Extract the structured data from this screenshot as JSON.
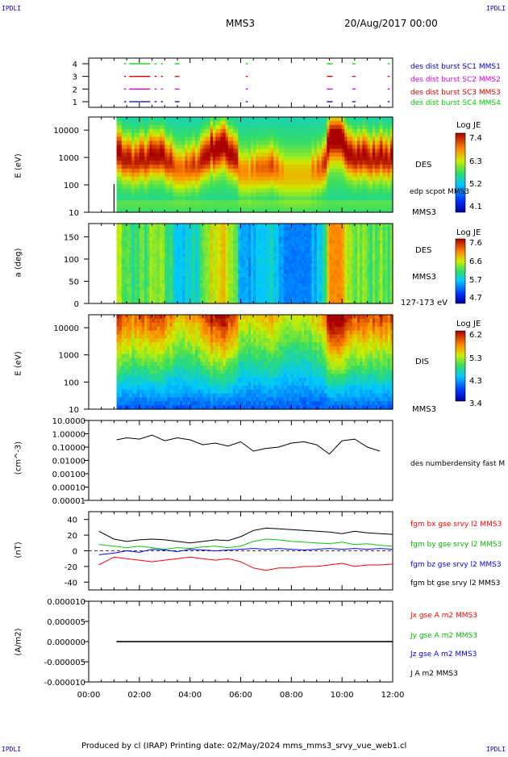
{
  "corners": {
    "top_left": "IPDLI",
    "top_right": "IPDLI",
    "bottom_left": "IPDLI",
    "bottom_right": "IPDLI"
  },
  "header": {
    "spacecraft": "MMS3",
    "datetime": "20/Aug/2017 00:00"
  },
  "footer": {
    "text": "Produced by cl (IRAP)   Printing date: 02/May/2024   mms_mms3_srvy_vue_web1.cl"
  },
  "x_axis": {
    "ticks": [
      "00:00",
      "02:00",
      "04:00",
      "06:00",
      "08:00",
      "10:00",
      "12:00"
    ],
    "range_hours": [
      0,
      12
    ]
  },
  "colors": {
    "burst1": "#0000cc",
    "burst2": "#dd00dd",
    "burst3": "#dd0000",
    "burst4": "#00cc00",
    "bx": "#ff0000",
    "by": "#00cc00",
    "bz": "#0000ff",
    "bt": "#000000"
  },
  "chart_data": [
    {
      "type": "scatter",
      "panel": "burst",
      "yticks": [
        "1",
        "2",
        "3",
        "4"
      ],
      "series": [
        {
          "name": "des dist burst SC1 MMS1",
          "y": 1
        },
        {
          "name": "des dist burst SC2 MMS2",
          "y": 2
        },
        {
          "name": "des dist burst SC3 MMS3",
          "y": 3
        },
        {
          "name": "des dist burst SC4 MMS4",
          "y": 4
        }
      ],
      "intervals_hours": [
        [
          1.4,
          1.45
        ],
        [
          1.6,
          2.4
        ],
        [
          2.6,
          2.65
        ],
        [
          2.85,
          2.9
        ],
        [
          3.4,
          3.55
        ],
        [
          6.2,
          6.25
        ],
        [
          9.4,
          9.6
        ],
        [
          10.4,
          10.5
        ],
        [
          11.8,
          11.85
        ]
      ]
    },
    {
      "type": "heatmap",
      "panel": "des_energy",
      "ylabel": "E (eV)",
      "yscale": "log",
      "ytick_labels": [
        "10",
        "100",
        "1000",
        "10000"
      ],
      "ylim": [
        10,
        30000
      ],
      "colorbar": {
        "title": "Log JE",
        "ticks": [
          "7.4",
          "6.3",
          "5.2",
          "4.1"
        ]
      },
      "labels": [
        "DES",
        "edp scpot MMS3",
        "MMS3"
      ]
    },
    {
      "type": "heatmap",
      "panel": "des_pitch",
      "ylabel": "a (deg)",
      "ytick_labels": [
        "0",
        "50",
        "100",
        "150"
      ],
      "ylim": [
        0,
        180
      ],
      "colorbar": {
        "title": "Log JE",
        "ticks": [
          "7.6",
          "6.6",
          "5.7",
          "4.7"
        ]
      },
      "labels": [
        "DES",
        "MMS3",
        "127-173 eV"
      ]
    },
    {
      "type": "heatmap",
      "panel": "dis_energy",
      "ylabel": "E (eV)",
      "yscale": "log",
      "ytick_labels": [
        "10",
        "100",
        "1000",
        "10000"
      ],
      "ylim": [
        10,
        30000
      ],
      "colorbar": {
        "title": "Log JE",
        "ticks": [
          "6.2",
          "5.3",
          "4.3",
          "3.4"
        ]
      },
      "labels": [
        "DIS",
        "MMS3"
      ]
    },
    {
      "type": "line",
      "panel": "density",
      "ylabel": "(cm^-3)",
      "yscale": "log",
      "ytick_labels": [
        "10.0000",
        "1.00000",
        "0.10000",
        "0.01000",
        "0.00100",
        "0.00010",
        "0.00001"
      ],
      "ylim": [
        1e-05,
        10
      ],
      "series": [
        {
          "name": "des numberdensity fast M",
          "x": [
            1.1,
            1.5,
            2.0,
            2.5,
            3.0,
            3.5,
            4.0,
            4.5,
            5.0,
            5.5,
            6.0,
            6.5,
            7.0,
            7.5,
            8.0,
            8.5,
            9.0,
            9.5,
            10.0,
            10.5,
            11.0,
            11.5
          ],
          "y": [
            0.35,
            0.5,
            0.4,
            0.8,
            0.3,
            0.5,
            0.35,
            0.15,
            0.2,
            0.12,
            0.25,
            0.05,
            0.08,
            0.1,
            0.2,
            0.25,
            0.15,
            0.03,
            0.3,
            0.4,
            0.1,
            0.05
          ]
        }
      ]
    },
    {
      "type": "line",
      "panel": "magnetic_field",
      "ylabel": "(nT)",
      "ytick_labels": [
        "40",
        "20",
        "0",
        "-20",
        "-40"
      ],
      "ylim": [
        -50,
        50
      ],
      "series": [
        {
          "name": "fgm bx gse srvy l2 MMS3",
          "color_key": "bx",
          "x": [
            0.4,
            1.0,
            1.5,
            2.0,
            2.5,
            3.0,
            3.5,
            4.0,
            4.5,
            5.0,
            5.5,
            6.0,
            6.5,
            7.0,
            7.5,
            8.0,
            8.5,
            9.0,
            9.5,
            10.0,
            10.5,
            11.0,
            11.5,
            12.0
          ],
          "y": [
            -18,
            -8,
            -10,
            -12,
            -14,
            -12,
            -10,
            -8,
            -10,
            -12,
            -10,
            -14,
            -22,
            -25,
            -22,
            -22,
            -20,
            -20,
            -18,
            -16,
            -20,
            -18,
            -18,
            -17
          ]
        },
        {
          "name": "fgm by gse srvy l2 MMS3",
          "color_key": "by",
          "x": [
            0.4,
            1.0,
            1.5,
            2.0,
            2.5,
            3.0,
            3.5,
            4.0,
            4.5,
            5.0,
            5.5,
            6.0,
            6.5,
            7.0,
            7.5,
            8.0,
            8.5,
            9.0,
            9.5,
            10.0,
            10.5,
            11.0,
            11.5,
            12.0
          ],
          "y": [
            8,
            6,
            4,
            6,
            4,
            2,
            4,
            3,
            5,
            6,
            4,
            6,
            12,
            15,
            14,
            12,
            11,
            10,
            9,
            11,
            8,
            9,
            7,
            6
          ]
        },
        {
          "name": "fgm bz gse srvy l2 MMS3",
          "color_key": "bz",
          "x": [
            0.4,
            1.0,
            1.5,
            2.0,
            2.5,
            3.0,
            3.5,
            4.0,
            4.5,
            5.0,
            5.5,
            6.0,
            6.5,
            7.0,
            7.5,
            8.0,
            8.5,
            9.0,
            9.5,
            10.0,
            10.5,
            11.0,
            11.5,
            12.0
          ],
          "y": [
            -5,
            -3,
            0,
            -2,
            2,
            1,
            -1,
            2,
            1,
            0,
            1,
            2,
            3,
            2,
            3,
            2,
            1,
            2,
            3,
            2,
            3,
            2,
            3,
            2
          ]
        },
        {
          "name": "fgm bt gse srvy l2 MMS3",
          "color_key": "bt",
          "x": [
            0.4,
            1.0,
            1.5,
            2.0,
            2.5,
            3.0,
            3.5,
            4.0,
            4.5,
            5.0,
            5.5,
            6.0,
            6.5,
            7.0,
            7.5,
            8.0,
            8.5,
            9.0,
            9.5,
            10.0,
            10.5,
            11.0,
            11.5,
            12.0
          ],
          "y": [
            25,
            15,
            12,
            14,
            15,
            14,
            12,
            10,
            12,
            14,
            13,
            18,
            26,
            29,
            28,
            27,
            26,
            25,
            24,
            22,
            25,
            23,
            22,
            21
          ]
        }
      ]
    },
    {
      "type": "line",
      "panel": "current_density",
      "ylabel": "(A/m2)",
      "ytick_labels": [
        "0.000010",
        "0.000005",
        "0.000000",
        "-0.000005",
        "-0.000010"
      ],
      "ylim": [
        -1e-05,
        1e-05
      ],
      "series": [
        {
          "name": "Jx gse A m2 MMS3",
          "color_key": "bx",
          "x": [
            1.1,
            12.0
          ],
          "y": [
            0,
            0
          ]
        },
        {
          "name": "Jy gse A m2 MMS3",
          "color_key": "by",
          "x": [
            1.1,
            12.0
          ],
          "y": [
            0,
            0
          ]
        },
        {
          "name": "Jz gse A m2 MMS3",
          "color_key": "bz",
          "x": [
            1.1,
            12.0
          ],
          "y": [
            0,
            0
          ]
        },
        {
          "name": "J A m2 MMS3",
          "color_key": "bt",
          "x": [
            1.1,
            12.0
          ],
          "y": [
            0,
            0
          ]
        }
      ]
    }
  ]
}
